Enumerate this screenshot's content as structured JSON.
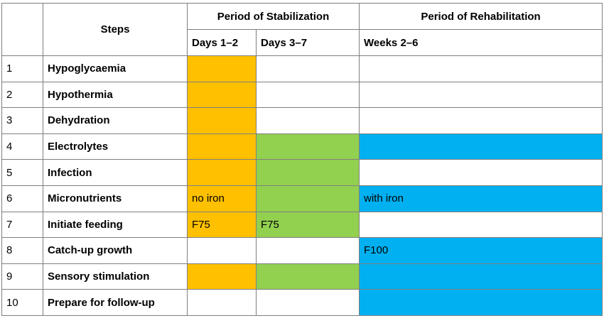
{
  "header": {
    "steps": "Steps",
    "stabilization": "Period of Stabilization",
    "rehabilitation": "Period of Rehabilitation",
    "days_1_2": "Days 1–2",
    "days_3_7": "Days 3–7",
    "weeks_2_6": "Weeks 2–6"
  },
  "colors": {
    "orange": "#FFC000",
    "green": "#92D050",
    "blue": "#00B0F0"
  },
  "rows": [
    {
      "num": "1",
      "step": "Hypoglycaemia",
      "d12": {
        "fill": "orange",
        "text": ""
      },
      "d37": {
        "fill": "none",
        "text": ""
      },
      "w26": {
        "fill": "none",
        "text": ""
      }
    },
    {
      "num": "2",
      "step": "Hypothermia",
      "d12": {
        "fill": "orange",
        "text": ""
      },
      "d37": {
        "fill": "none",
        "text": ""
      },
      "w26": {
        "fill": "none",
        "text": ""
      }
    },
    {
      "num": "3",
      "step": "Dehydration",
      "d12": {
        "fill": "orange",
        "text": ""
      },
      "d37": {
        "fill": "none",
        "text": ""
      },
      "w26": {
        "fill": "none",
        "text": ""
      }
    },
    {
      "num": "4",
      "step": "Electrolytes",
      "d12": {
        "fill": "orange",
        "text": ""
      },
      "d37": {
        "fill": "green",
        "text": ""
      },
      "w26": {
        "fill": "blue",
        "text": ""
      }
    },
    {
      "num": "5",
      "step": "Infection",
      "d12": {
        "fill": "orange",
        "text": ""
      },
      "d37": {
        "fill": "green",
        "text": ""
      },
      "w26": {
        "fill": "none",
        "text": ""
      }
    },
    {
      "num": "6",
      "step": "Micronutrients",
      "d12": {
        "fill": "orange",
        "text": "no iron"
      },
      "d37": {
        "fill": "green",
        "text": ""
      },
      "w26": {
        "fill": "blue",
        "text": "with iron"
      }
    },
    {
      "num": "7",
      "step": "Initiate feeding",
      "d12": {
        "fill": "orange",
        "text": "F75"
      },
      "d37": {
        "fill": "green",
        "text": "F75"
      },
      "w26": {
        "fill": "none",
        "text": ""
      }
    },
    {
      "num": "8",
      "step": "Catch-up growth",
      "d12": {
        "fill": "none",
        "text": ""
      },
      "d37": {
        "fill": "none",
        "text": ""
      },
      "w26": {
        "fill": "blue",
        "text": "F100"
      }
    },
    {
      "num": "9",
      "step": "Sensory stimulation",
      "d12": {
        "fill": "orange",
        "text": ""
      },
      "d37": {
        "fill": "green",
        "text": ""
      },
      "w26": {
        "fill": "blue",
        "text": ""
      }
    },
    {
      "num": "10",
      "step": "Prepare for follow-up",
      "d12": {
        "fill": "none",
        "text": ""
      },
      "d37": {
        "fill": "none",
        "text": ""
      },
      "w26": {
        "fill": "blue",
        "text": ""
      }
    }
  ]
}
